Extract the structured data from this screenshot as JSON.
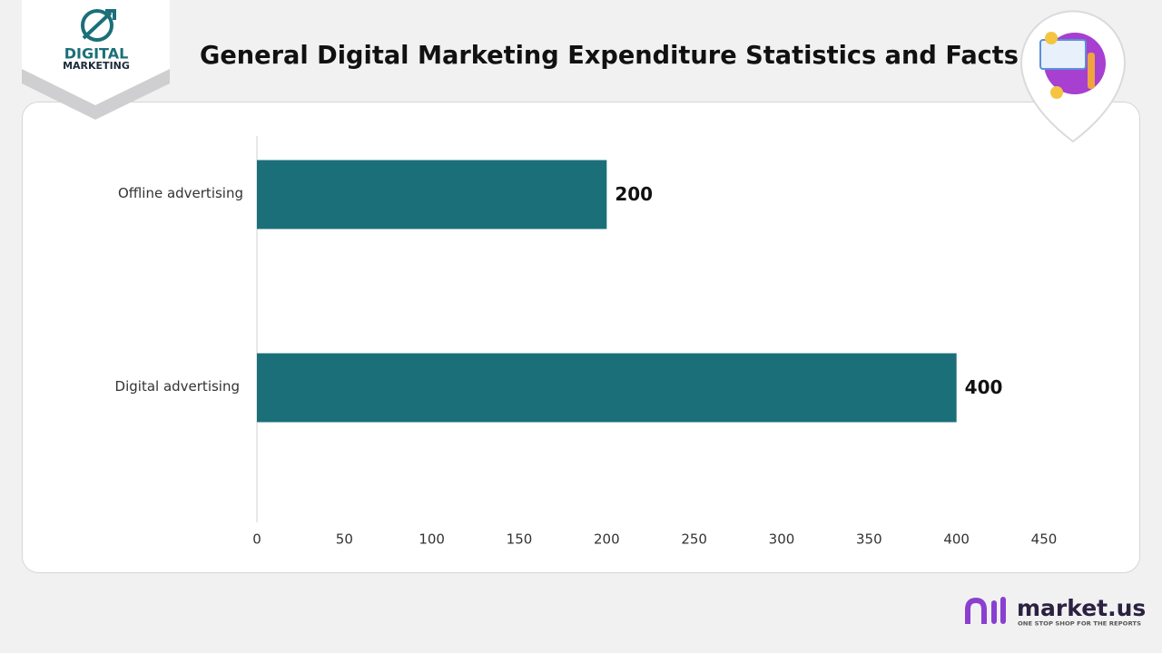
{
  "chart_data": {
    "type": "bar",
    "orientation": "horizontal",
    "title": "General Digital Marketing Expenditure Statistics and Facts",
    "categories": [
      "Offline advertising",
      "Digital advertising"
    ],
    "values": [
      200,
      400
    ],
    "color": "#1b6f79",
    "xlim": [
      0,
      450
    ],
    "xticks": [
      0,
      50,
      100,
      150,
      200,
      250,
      300,
      350,
      400,
      450
    ],
    "grid": false
  },
  "branding": {
    "logo_line1": "DIGITAL",
    "logo_line2": "MARKETING",
    "brand": "market.us",
    "tagline": "ONE STOP SHOP FOR THE REPORTS"
  }
}
